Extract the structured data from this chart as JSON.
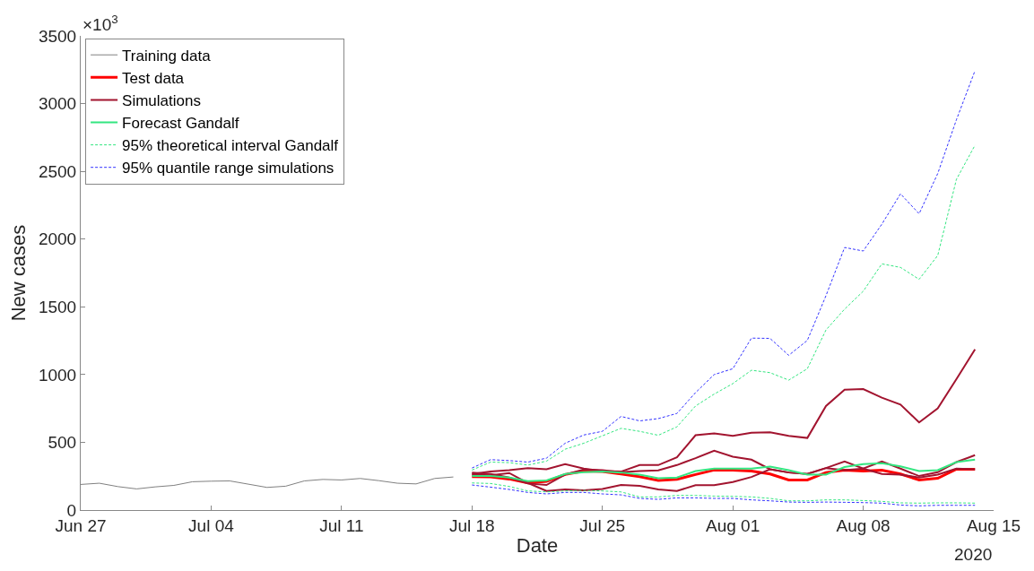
{
  "chart_data": {
    "type": "line",
    "xlabel": "Date",
    "ylabel": "New cases",
    "annotations": [
      "×10$^{3}$",
      "2020"
    ],
    "x": [
      "2020-06-27",
      "2020-06-28",
      "2020-06-29",
      "2020-06-30",
      "2020-07-01",
      "2020-07-02",
      "2020-07-03",
      "2020-07-04",
      "2020-07-05",
      "2020-07-06",
      "2020-07-07",
      "2020-07-08",
      "2020-07-09",
      "2020-07-10",
      "2020-07-11",
      "2020-07-12",
      "2020-07-13",
      "2020-07-14",
      "2020-07-15",
      "2020-07-16",
      "2020-07-17",
      "2020-07-18",
      "2020-07-19",
      "2020-07-20",
      "2020-07-21",
      "2020-07-22",
      "2020-07-23",
      "2020-07-24",
      "2020-07-25",
      "2020-07-26",
      "2020-07-27",
      "2020-07-28",
      "2020-07-29",
      "2020-07-30",
      "2020-07-31",
      "2020-08-01",
      "2020-08-02",
      "2020-08-03",
      "2020-08-04",
      "2020-08-05",
      "2020-08-06",
      "2020-08-07",
      "2020-08-08",
      "2020-08-09",
      "2020-08-10",
      "2020-08-11",
      "2020-08-12",
      "2020-08-13",
      "2020-08-14"
    ],
    "xlim": [
      "2020-06-27",
      "2020-08-15"
    ],
    "xticks": [
      {
        "value": "2020-06-27",
        "label": "Jun 27"
      },
      {
        "value": "2020-07-04",
        "label": "Jul 04"
      },
      {
        "value": "2020-07-11",
        "label": "Jul 11"
      },
      {
        "value": "2020-07-18",
        "label": "Jul 18"
      },
      {
        "value": "2020-07-25",
        "label": "Jul 25"
      },
      {
        "value": "2020-08-01",
        "label": "Aug 01"
      },
      {
        "value": "2020-08-08",
        "label": "Aug 08"
      },
      {
        "value": "2020-08-15",
        "label": "Aug 15"
      }
    ],
    "ylim": [
      0,
      3500
    ],
    "yticks": [
      0,
      500,
      1000,
      1500,
      2000,
      2500,
      3000,
      3500
    ],
    "legend": "top left",
    "marker": "none",
    "series": [
      {
        "name": "Training data",
        "color": "#808080",
        "line_style": "solid",
        "values": [
          189,
          198,
          173,
          156,
          171,
          182,
          209,
          213,
          215,
          191,
          167,
          176,
          215,
          226,
          222,
          233,
          217,
          198,
          193,
          233,
          244,
          null,
          null,
          null,
          null,
          null,
          null,
          null,
          null,
          null,
          null,
          null,
          null,
          null,
          null,
          null,
          null,
          null,
          null,
          null,
          null,
          null,
          null,
          null,
          null,
          null,
          null,
          null,
          null
        ]
      },
      {
        "name": "Test data",
        "color": "#ff0000",
        "line_style": "solid",
        "values": [
          null,
          null,
          null,
          null,
          null,
          null,
          null,
          null,
          null,
          null,
          null,
          null,
          null,
          null,
          null,
          null,
          null,
          null,
          null,
          null,
          null,
          246,
          244,
          229,
          200,
          211,
          262,
          288,
          284,
          266,
          246,
          218,
          227,
          262,
          295,
          295,
          288,
          266,
          222,
          222,
          277,
          295,
          288,
          295,
          266,
          222,
          235,
          301,
          301
        ]
      },
      {
        "name": "Simulations",
        "color": "#a2142f",
        "line_style": "solid",
        "values": [
          null,
          null,
          null,
          null,
          null,
          null,
          null,
          null,
          null,
          null,
          null,
          null,
          null,
          null,
          null,
          null,
          null,
          null,
          null,
          null,
          null,
          266,
          284,
          295,
          310,
          301,
          339,
          306,
          288,
          284,
          332,
          332,
          389,
          552,
          565,
          548,
          570,
          574,
          548,
          532,
          768,
          889,
          893,
          829,
          779,
          647,
          750,
          966,
          1186
        ]
      },
      {
        "color": "#a2142f",
        "line_style": "solid",
        "values": [
          null,
          null,
          null,
          null,
          null,
          null,
          null,
          null,
          null,
          null,
          null,
          null,
          null,
          null,
          null,
          null,
          null,
          null,
          null,
          null,
          null,
          277,
          266,
          240,
          196,
          185,
          262,
          299,
          295,
          279,
          288,
          293,
          332,
          383,
          438,
          394,
          372,
          301,
          277,
          266,
          310,
          359,
          306,
          359,
          306,
          251,
          279,
          354,
          405
        ]
      },
      {
        "color": "#a2142f",
        "line_style": "solid",
        "values": [
          null,
          null,
          null,
          null,
          null,
          null,
          null,
          null,
          null,
          null,
          null,
          null,
          null,
          null,
          null,
          null,
          null,
          null,
          null,
          null,
          null,
          262,
          257,
          273,
          200,
          141,
          152,
          145,
          156,
          185,
          178,
          152,
          141,
          183,
          183,
          207,
          244,
          301,
          277,
          266,
          310,
          295,
          306,
          266,
          262,
          240,
          262,
          306,
          301
        ]
      },
      {
        "name": "Forecast Gandalf",
        "color": "#33e680",
        "line_style": "solid",
        "values": [
          null,
          null,
          null,
          null,
          null,
          null,
          null,
          null,
          null,
          null,
          null,
          null,
          null,
          null,
          null,
          null,
          null,
          null,
          null,
          null,
          null,
          251,
          251,
          240,
          213,
          218,
          266,
          279,
          284,
          277,
          262,
          235,
          240,
          288,
          306,
          306,
          306,
          321,
          295,
          262,
          262,
          317,
          339,
          345,
          323,
          288,
          295,
          354,
          372
        ]
      },
      {
        "name": "95% theoretical interval Gandalf",
        "color": "#33e680",
        "line_style": "dashed",
        "values": [
          null,
          null,
          null,
          null,
          null,
          null,
          null,
          null,
          null,
          null,
          null,
          null,
          null,
          null,
          null,
          null,
          null,
          null,
          null,
          null,
          null,
          295,
          354,
          350,
          332,
          361,
          449,
          493,
          548,
          603,
          581,
          552,
          614,
          768,
          856,
          933,
          1032,
          1014,
          959,
          1043,
          1329,
          1483,
          1615,
          1817,
          1791,
          1703,
          1879,
          2440,
          2693
        ]
      },
      {
        "color": "#33e680",
        "line_style": "dashed",
        "values": [
          null,
          null,
          null,
          null,
          null,
          null,
          null,
          null,
          null,
          null,
          null,
          null,
          null,
          null,
          null,
          null,
          null,
          null,
          null,
          null,
          null,
          200,
          196,
          174,
          141,
          134,
          141,
          145,
          141,
          134,
          97,
          97,
          108,
          108,
          103,
          101,
          97,
          86,
          68,
          68,
          75,
          75,
          70,
          64,
          53,
          51,
          53,
          53,
          51
        ]
      },
      {
        "name": "95% quantile range simulations",
        "color": "#3333ff",
        "line_style": "dashed",
        "values": [
          null,
          null,
          null,
          null,
          null,
          null,
          null,
          null,
          null,
          null,
          null,
          null,
          null,
          null,
          null,
          null,
          null,
          null,
          null,
          null,
          null,
          310,
          372,
          365,
          354,
          383,
          493,
          554,
          581,
          691,
          658,
          675,
          713,
          867,
          1000,
          1043,
          1269,
          1267,
          1142,
          1252,
          1582,
          1938,
          1912,
          2110,
          2334,
          2187,
          2484,
          2880,
          3243
        ]
      },
      {
        "color": "#3333ff",
        "line_style": "dashed",
        "values": [
          null,
          null,
          null,
          null,
          null,
          null,
          null,
          null,
          null,
          null,
          null,
          null,
          null,
          null,
          null,
          null,
          null,
          null,
          null,
          null,
          null,
          185,
          169,
          152,
          130,
          119,
          130,
          130,
          119,
          112,
          86,
          79,
          90,
          90,
          86,
          86,
          75,
          68,
          59,
          57,
          59,
          57,
          55,
          51,
          37,
          31,
          35,
          35,
          35
        ]
      }
    ]
  }
}
